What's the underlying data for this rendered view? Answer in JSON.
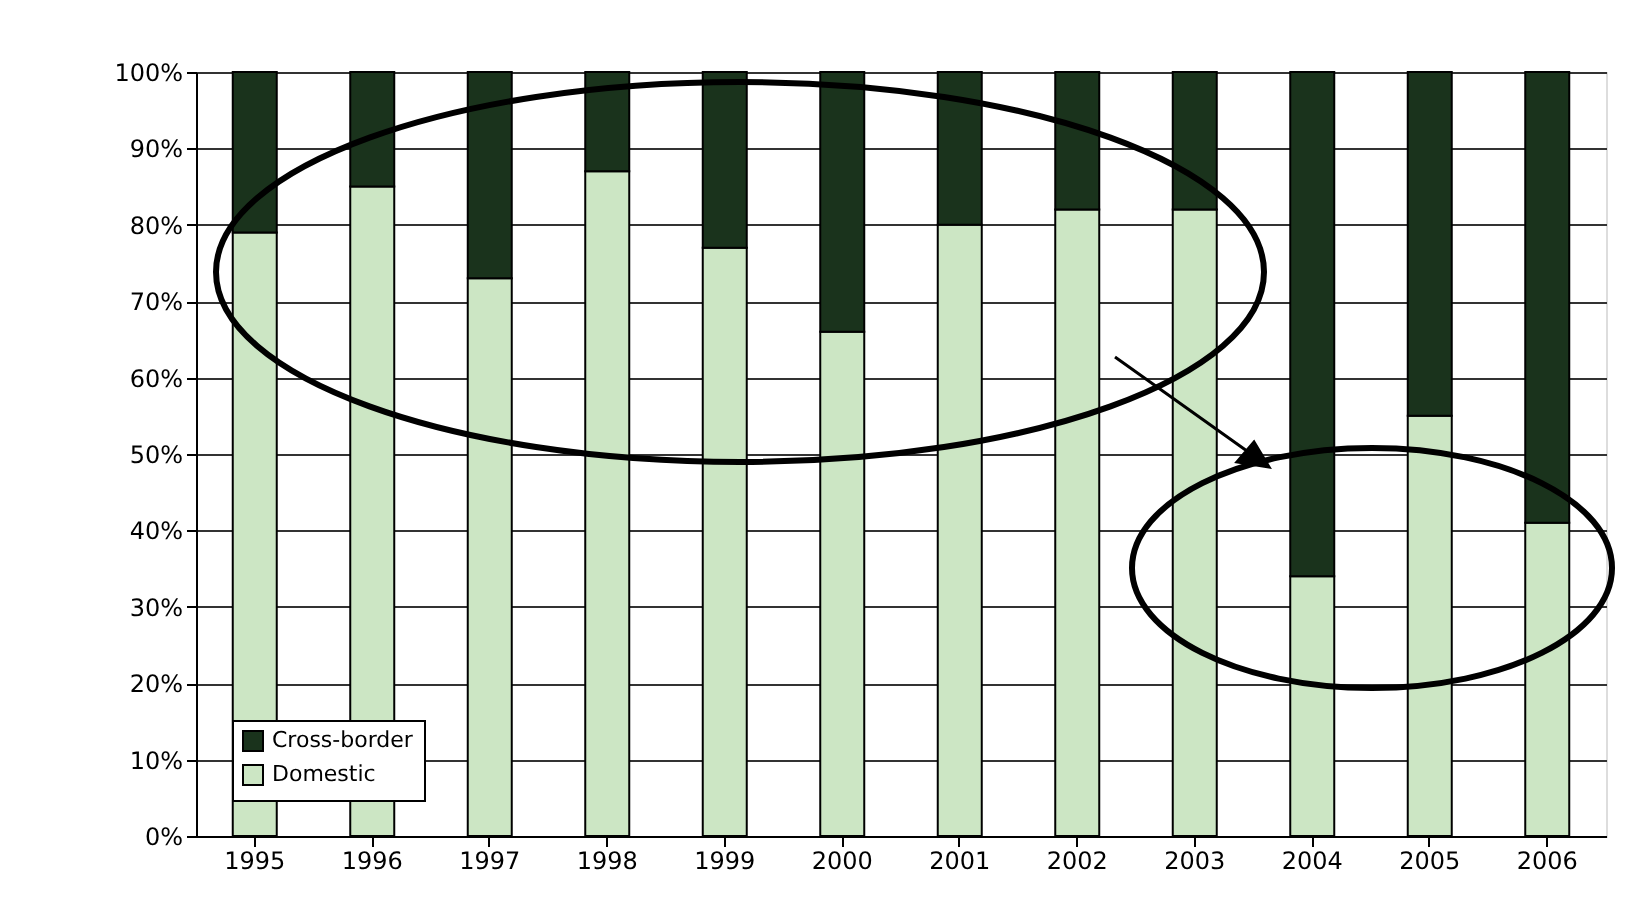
{
  "chart_data": {
    "type": "bar",
    "stacked": true,
    "categories": [
      "1995",
      "1996",
      "1997",
      "1998",
      "1999",
      "2000",
      "2001",
      "2002",
      "2003",
      "2004",
      "2005",
      "2006"
    ],
    "series": [
      {
        "name": "Domestic",
        "color": "#cce6c4",
        "values": [
          79,
          85,
          73,
          87,
          77,
          66,
          80,
          82,
          82,
          34,
          55,
          41
        ]
      },
      {
        "name": "Cross-border",
        "color": "#1a331c",
        "values": [
          21,
          15,
          27,
          13,
          23,
          34,
          20,
          18,
          18,
          66,
          45,
          59
        ]
      }
    ],
    "ylim": [
      0,
      100
    ],
    "yticks": [
      {
        "value": 0,
        "label": "0%"
      },
      {
        "value": 10,
        "label": "10%"
      },
      {
        "value": 20,
        "label": "20%"
      },
      {
        "value": 30,
        "label": "30%"
      },
      {
        "value": 40,
        "label": "40%"
      },
      {
        "value": 50,
        "label": "50%"
      },
      {
        "value": 60,
        "label": "60%"
      },
      {
        "value": 70,
        "label": "70%"
      },
      {
        "value": 80,
        "label": "80%"
      },
      {
        "value": 90,
        "label": "90%"
      },
      {
        "value": 100,
        "label": "100%"
      }
    ],
    "grid": "y",
    "legend": "bottom left"
  }
}
